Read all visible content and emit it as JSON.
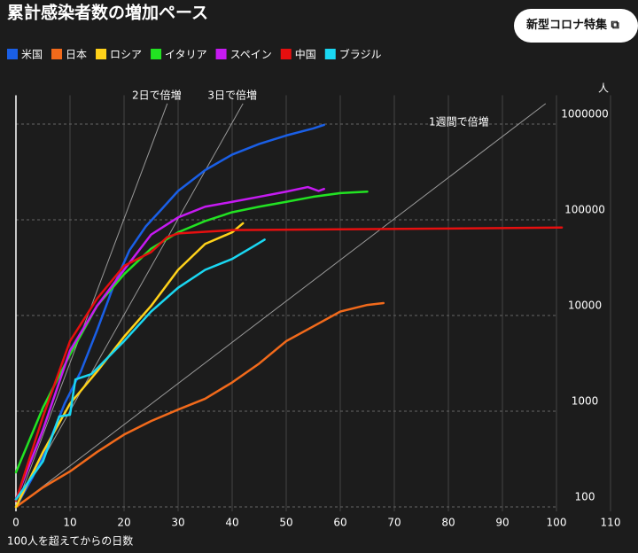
{
  "chart_data": {
    "type": "line",
    "title": "累計感染者数の増加ペース",
    "button": "新型コロナ特集",
    "y_unit": "人",
    "x_label": "100人を超えてからの日数",
    "log_scale": true,
    "grid": true,
    "legend_position": "top",
    "xlim": [
      0,
      110
    ],
    "xticks": [
      0,
      10,
      20,
      30,
      40,
      50,
      60,
      70,
      80,
      90,
      100,
      110
    ],
    "ylim": [
      90,
      2000000
    ],
    "yticks": [
      100,
      1000,
      10000,
      100000,
      1000000
    ],
    "series": [
      {
        "name": "米国",
        "color": "#1a5fe6",
        "x": [
          0,
          3,
          6,
          9,
          12,
          15,
          18,
          21,
          24,
          27,
          30,
          35,
          40,
          45,
          50,
          55,
          57
        ],
        "values": [
          100,
          200,
          450,
          1200,
          2600,
          7000,
          20000,
          48000,
          85000,
          130000,
          200000,
          330000,
          480000,
          620000,
          760000,
          900000,
          980000
        ]
      },
      {
        "name": "日本",
        "color": "#f26a1b",
        "x": [
          0,
          5,
          10,
          15,
          20,
          25,
          30,
          35,
          40,
          45,
          50,
          55,
          60,
          65,
          68
        ],
        "values": [
          100,
          160,
          235,
          375,
          570,
          790,
          1040,
          1350,
          2000,
          3150,
          5400,
          7700,
          11000,
          12900,
          13500
        ]
      },
      {
        "name": "ロシア",
        "color": "#ffd21a",
        "x": [
          0,
          5,
          10,
          15,
          20,
          25,
          30,
          35,
          40,
          42
        ],
        "values": [
          100,
          375,
          1200,
          2600,
          6000,
          12600,
          30000,
          56000,
          74000,
          92000
        ]
      },
      {
        "name": "イタリア",
        "color": "#22e322",
        "x": [
          0,
          5,
          10,
          15,
          20,
          25,
          30,
          35,
          40,
          45,
          50,
          55,
          60,
          65
        ],
        "values": [
          230,
          1090,
          3900,
          12600,
          27000,
          50000,
          74000,
          97000,
          120000,
          137000,
          154000,
          174000,
          190000,
          197000
        ]
      },
      {
        "name": "スペイン",
        "color": "#c61af2",
        "x": [
          0,
          5,
          10,
          15,
          20,
          25,
          30,
          35,
          40,
          45,
          50,
          54,
          56,
          57
        ],
        "values": [
          120,
          640,
          4300,
          12600,
          30000,
          70000,
          106000,
          137000,
          154000,
          174000,
          197000,
          220000,
          200000,
          210000
        ]
      },
      {
        "name": "中国",
        "color": "#e60f0f",
        "x": [
          0,
          5,
          10,
          15,
          20,
          25,
          28,
          30,
          40,
          60,
          80,
          101
        ],
        "values": [
          116,
          880,
          5400,
          15000,
          33000,
          46000,
          66000,
          72000,
          78000,
          79500,
          81000,
          83000
        ]
      },
      {
        "name": "ブラジル",
        "color": "#1ad7f2",
        "x": [
          0,
          5,
          8,
          10,
          11,
          14,
          20,
          25,
          30,
          35,
          40,
          44,
          46
        ],
        "values": [
          120,
          300,
          880,
          920,
          2150,
          2450,
          5400,
          11000,
          19500,
          30000,
          39000,
          53000,
          62000
        ]
      }
    ],
    "reference_lines": [
      {
        "label": "2日で倍増",
        "x": [
          0,
          28
        ],
        "values": [
          100,
          1638400
        ]
      },
      {
        "label": "3日で倍増",
        "x": [
          0,
          42
        ],
        "values": [
          100,
          1638400
        ]
      },
      {
        "label": "1週間で倍増",
        "x": [
          0,
          98
        ],
        "values": [
          100,
          1638400
        ]
      }
    ]
  }
}
